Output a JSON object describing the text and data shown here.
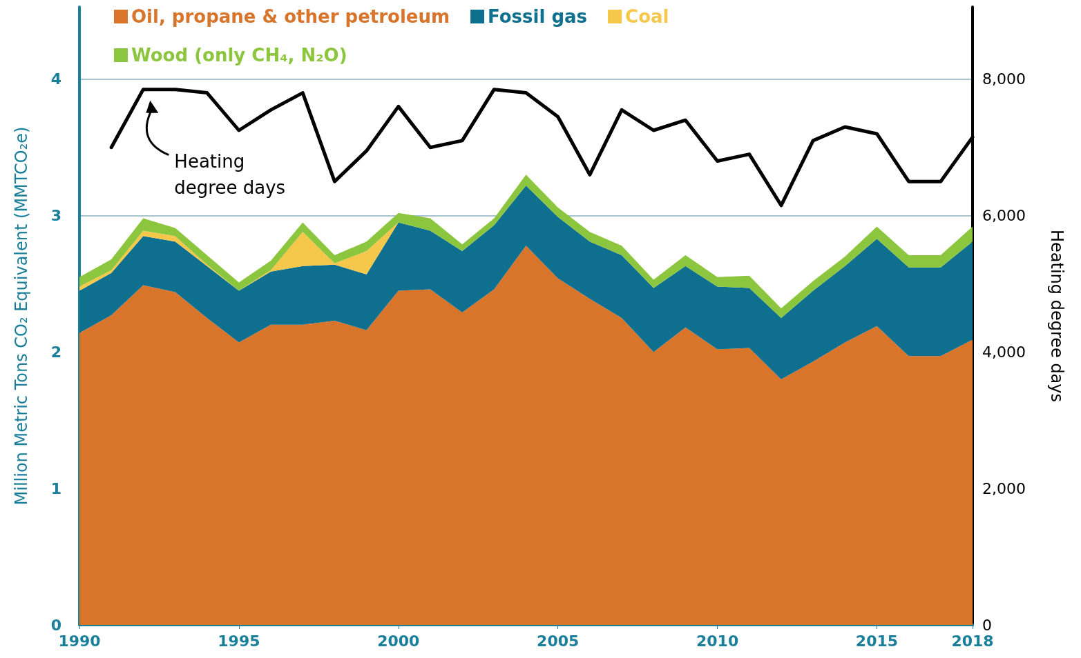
{
  "chart_data": {
    "type": "area",
    "stacked": true,
    "ylabel": "Million Metric Tons CO₂ Equivalent (MMTCO₂e)",
    "y2label": "Heating degree days",
    "x": [
      1990,
      1991,
      1992,
      1993,
      1994,
      1995,
      1996,
      1997,
      1998,
      1999,
      2000,
      2001,
      2002,
      2003,
      2004,
      2005,
      2006,
      2007,
      2008,
      2009,
      2010,
      2011,
      2012,
      2013,
      2014,
      2015,
      2016,
      2017,
      2018
    ],
    "xlim": [
      1990,
      2018
    ],
    "xticks": [
      1990,
      1995,
      2000,
      2005,
      2010,
      2015,
      2018
    ],
    "ylim": [
      0,
      4.53
    ],
    "yticks": [
      0,
      1,
      2,
      3,
      4
    ],
    "y2lim": [
      0,
      9060
    ],
    "y2ticks": [
      0,
      {
        "value": 2000,
        "label": "2,000"
      },
      {
        "value": 4000,
        "label": "4,000"
      },
      {
        "value": 6000,
        "label": "6,000"
      },
      {
        "value": 8000,
        "label": "8,000"
      }
    ],
    "grid": "y",
    "legend": "top left",
    "marker": "none",
    "series": [
      {
        "name": "Oil, propane & other petroleum",
        "color": "#d9742b",
        "values": [
          2.14,
          2.27,
          2.49,
          2.44,
          2.25,
          2.07,
          2.2,
          2.2,
          2.23,
          2.16,
          2.45,
          2.46,
          2.29,
          2.46,
          2.78,
          2.54,
          2.39,
          2.25,
          2.0,
          2.18,
          2.02,
          2.03,
          1.8,
          1.93,
          2.07,
          2.19,
          1.97,
          1.97,
          2.09
        ]
      },
      {
        "name": "Fossil gas",
        "color": "#0e6f8f",
        "values": [
          0.31,
          0.31,
          0.36,
          0.37,
          0.38,
          0.38,
          0.39,
          0.43,
          0.41,
          0.41,
          0.5,
          0.43,
          0.45,
          0.47,
          0.44,
          0.45,
          0.42,
          0.46,
          0.47,
          0.45,
          0.46,
          0.44,
          0.45,
          0.52,
          0.56,
          0.64,
          0.65,
          0.65,
          0.72
        ]
      },
      {
        "name": "Coal",
        "color": "#f5c84c",
        "values": [
          0.03,
          0.02,
          0.04,
          0.04,
          0.01,
          0,
          0.01,
          0.25,
          0.01,
          0.17,
          0,
          0,
          0,
          0,
          0,
          0,
          0,
          0,
          0,
          0,
          0,
          0,
          0,
          0,
          0,
          0,
          0,
          0,
          0
        ]
      },
      {
        "name": "Wood (only CH₄, N₂O)",
        "color": "#8cc63f",
        "values": [
          0.07,
          0.08,
          0.09,
          0.06,
          0.07,
          0.06,
          0.07,
          0.07,
          0.06,
          0.07,
          0.07,
          0.09,
          0.05,
          0.05,
          0.08,
          0.07,
          0.07,
          0.07,
          0.06,
          0.08,
          0.07,
          0.09,
          0.07,
          0.07,
          0.07,
          0.09,
          0.09,
          0.09,
          0.11
        ]
      },
      {
        "name": "Heating degree days",
        "type": "line",
        "axis": "y2",
        "color": "#000000",
        "x": [
          1991,
          1992,
          1993,
          1994,
          1995,
          1996,
          1997,
          1998,
          1999,
          2000,
          2001,
          2002,
          2003,
          2004,
          2005,
          2006,
          2007,
          2008,
          2009,
          2010,
          2011,
          2012,
          2013,
          2014,
          2015,
          2016,
          2017,
          2018
        ],
        "values": [
          7000,
          7850,
          7850,
          7800,
          7250,
          7550,
          7800,
          6500,
          6950,
          7600,
          7000,
          7100,
          7850,
          7800,
          7450,
          6600,
          7550,
          7250,
          7400,
          6800,
          6900,
          6150,
          7100,
          7300,
          7200,
          6500,
          6500,
          7150
        ]
      }
    ]
  }
}
